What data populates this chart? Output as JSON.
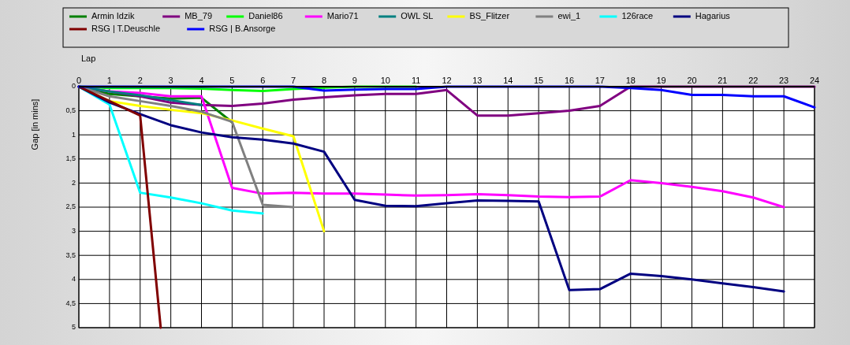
{
  "chart_data": {
    "type": "line",
    "xlabel": "Lap",
    "ylabel": "Gap [in mins]",
    "xlim": [
      0,
      24
    ],
    "xticks": [
      0,
      1,
      2,
      3,
      4,
      5,
      6,
      7,
      8,
      9,
      10,
      11,
      12,
      13,
      14,
      15,
      16,
      17,
      18,
      19,
      20,
      21,
      22,
      23,
      24
    ],
    "ylim": [
      5,
      0
    ],
    "yticks": [
      0,
      {
        "value": 0.5,
        "label": "0,5"
      },
      1,
      {
        "value": 1.5,
        "label": "1,5"
      },
      2,
      {
        "value": 2.5,
        "label": "2,5"
      },
      3,
      {
        "value": 3.5,
        "label": "3,5"
      },
      4,
      {
        "value": 4.5,
        "label": "4,5"
      },
      5
    ],
    "grid": true,
    "legend": "top",
    "marker": "none",
    "line_style": "solid",
    "series": [
      {
        "name": "Armin Idzik",
        "color": "#008000",
        "x": [
          0,
          1,
          2,
          3,
          4,
          5
        ],
        "values": [
          0,
          0.15,
          0.2,
          0.25,
          0.23,
          0.74
        ]
      },
      {
        "name": "MB_79",
        "color": "#800080",
        "x": [
          0,
          1,
          2,
          3,
          4,
          5,
          6,
          7,
          8,
          9,
          10,
          11,
          12,
          13,
          14,
          15,
          16,
          17,
          18,
          19,
          20,
          21,
          22,
          23,
          24
        ],
        "values": [
          0,
          0.1,
          0.2,
          0.33,
          0.38,
          0.4,
          0.35,
          0.27,
          0.22,
          0.18,
          0.15,
          0.15,
          0.07,
          0.6,
          0.6,
          0.55,
          0.5,
          0.4,
          0,
          0,
          0,
          0,
          0,
          0,
          0
        ]
      },
      {
        "name": "Daniel86",
        "color": "#00ff00",
        "x": [
          0,
          1,
          2,
          3,
          4,
          5,
          6,
          7,
          8,
          9,
          10,
          11
        ],
        "values": [
          0,
          0.03,
          0.03,
          0.03,
          0.04,
          0.07,
          0.09,
          0.05,
          0.02,
          0,
          0,
          0
        ]
      },
      {
        "name": "Mario71",
        "color": "#ff00ff",
        "x": [
          0,
          1,
          2,
          3,
          4,
          5,
          6,
          7,
          8,
          9,
          10,
          11,
          12,
          13,
          14,
          15,
          16,
          17,
          18,
          19,
          20,
          21,
          22,
          23
        ],
        "values": [
          0,
          0.1,
          0.13,
          0.2,
          0.2,
          2.1,
          2.22,
          2.2,
          2.22,
          2.22,
          2.24,
          2.26,
          2.25,
          2.23,
          2.25,
          2.28,
          2.29,
          2.28,
          1.94,
          2.0,
          2.08,
          2.17,
          2.3,
          2.5
        ]
      },
      {
        "name": "OWL SL",
        "color": "#008080",
        "x": [
          0,
          1,
          2,
          3,
          4
        ],
        "values": [
          0,
          0.1,
          0.18,
          0.28,
          0.38
        ]
      },
      {
        "name": "BS_Flitzer",
        "color": "#ffff00",
        "x": [
          0,
          1,
          2,
          3,
          4,
          5,
          6,
          7,
          8
        ],
        "values": [
          0,
          0.3,
          0.4,
          0.48,
          0.55,
          0.7,
          0.87,
          1.03,
          3.0
        ]
      },
      {
        "name": "ewi_1",
        "color": "#808080",
        "x": [
          0,
          1,
          2,
          3,
          4,
          5,
          6,
          7
        ],
        "values": [
          0,
          0.2,
          0.3,
          0.4,
          0.52,
          0.73,
          2.45,
          2.5
        ]
      },
      {
        "name": "126race",
        "color": "#00ffff",
        "x": [
          0,
          1,
          2,
          3,
          4,
          5,
          6
        ],
        "values": [
          0,
          0.37,
          2.2,
          2.3,
          2.42,
          2.57,
          2.63
        ]
      },
      {
        "name": "Hagarius",
        "color": "#000080",
        "x": [
          0,
          1,
          2,
          3,
          4,
          5,
          6,
          7,
          8,
          9,
          10,
          11,
          12,
          13,
          14,
          15,
          16,
          17,
          18,
          19,
          20,
          21,
          22,
          23
        ],
        "values": [
          0,
          0.33,
          0.57,
          0.8,
          0.95,
          1.05,
          1.1,
          1.18,
          1.35,
          2.35,
          2.47,
          2.48,
          2.42,
          2.36,
          2.37,
          2.38,
          4.22,
          4.2,
          3.88,
          3.93,
          4.0,
          4.08,
          4.16,
          4.25
        ]
      },
      {
        "name": "RSG | T.Deuschle",
        "color": "#800000",
        "x": [
          0,
          1,
          2,
          2.67
        ],
        "values": [
          0,
          0.3,
          0.6,
          5
        ]
      },
      {
        "name": "RSG | B.Ansorge",
        "color": "#0000ff",
        "x": [
          0,
          1,
          2,
          3,
          4,
          5,
          6,
          7,
          8,
          9,
          10,
          11,
          12,
          13,
          14,
          15,
          16,
          17,
          18,
          19,
          20,
          21,
          22,
          23,
          24
        ],
        "values": [
          0,
          0,
          0,
          0,
          0,
          0,
          0,
          0,
          0.08,
          0.06,
          0.05,
          0.05,
          0,
          0,
          0,
          0,
          0,
          0,
          0.03,
          0.07,
          0.17,
          0.17,
          0.2,
          0.2,
          0.43
        ]
      }
    ]
  }
}
